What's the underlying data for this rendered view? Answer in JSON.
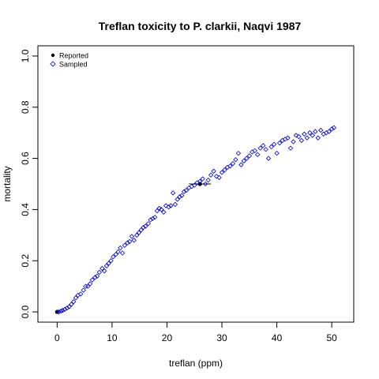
{
  "chart_data": {
    "type": "scatter",
    "title": "Treflan toxicity to P. clarkii, Naqvi 1987",
    "xlabel": "treflan (ppm)",
    "ylabel": "mortality",
    "xlim": [
      -3.5,
      54
    ],
    "ylim": [
      -0.04,
      1.04
    ],
    "x_ticks": [
      0,
      10,
      20,
      30,
      40,
      50
    ],
    "y_ticks": [
      0.0,
      0.2,
      0.4,
      0.6,
      0.8,
      1.0
    ],
    "x_tick_labels": [
      "0",
      "10",
      "20",
      "30",
      "40",
      "50"
    ],
    "y_tick_labels": [
      "0.0",
      "0.2",
      "0.4",
      "0.6",
      "0.8",
      "1.0"
    ],
    "legend": {
      "position": "top-left",
      "entries": [
        {
          "label": "Reported",
          "marker": "filled-circle"
        },
        {
          "label": "Sampled",
          "marker": "open-diamond"
        }
      ]
    },
    "series": [
      {
        "name": "Reported",
        "marker": "filled-circle",
        "color": "#000000",
        "points": [
          [
            0,
            0.0
          ],
          [
            26,
            0.5
          ]
        ],
        "error_bars_x": [
          [
            24,
            28
          ]
        ]
      },
      {
        "name": "Sampled",
        "marker": "open-diamond",
        "color": "#0000cc",
        "points": [
          [
            0.3,
            0.0
          ],
          [
            0.7,
            0.003
          ],
          [
            1.0,
            0.006
          ],
          [
            1.4,
            0.01
          ],
          [
            1.8,
            0.015
          ],
          [
            2.2,
            0.02
          ],
          [
            2.6,
            0.03
          ],
          [
            3.0,
            0.04
          ],
          [
            3.4,
            0.055
          ],
          [
            3.8,
            0.065
          ],
          [
            4.3,
            0.07
          ],
          [
            4.8,
            0.085
          ],
          [
            5.2,
            0.1
          ],
          [
            5.6,
            0.1
          ],
          [
            6.0,
            0.11
          ],
          [
            6.4,
            0.125
          ],
          [
            6.9,
            0.135
          ],
          [
            7.3,
            0.14
          ],
          [
            7.7,
            0.155
          ],
          [
            8.2,
            0.17
          ],
          [
            8.6,
            0.16
          ],
          [
            9.0,
            0.18
          ],
          [
            9.4,
            0.19
          ],
          [
            9.8,
            0.2
          ],
          [
            10.2,
            0.215
          ],
          [
            10.7,
            0.225
          ],
          [
            11.1,
            0.235
          ],
          [
            11.5,
            0.25
          ],
          [
            11.9,
            0.23
          ],
          [
            12.3,
            0.26
          ],
          [
            12.8,
            0.27
          ],
          [
            13.2,
            0.275
          ],
          [
            13.6,
            0.295
          ],
          [
            14.0,
            0.28
          ],
          [
            14.5,
            0.3
          ],
          [
            14.9,
            0.31
          ],
          [
            15.3,
            0.32
          ],
          [
            15.7,
            0.33
          ],
          [
            16.1,
            0.335
          ],
          [
            16.6,
            0.345
          ],
          [
            17.0,
            0.36
          ],
          [
            17.4,
            0.365
          ],
          [
            17.8,
            0.37
          ],
          [
            18.2,
            0.395
          ],
          [
            18.6,
            0.405
          ],
          [
            19.0,
            0.4
          ],
          [
            19.4,
            0.39
          ],
          [
            19.8,
            0.415
          ],
          [
            20.3,
            0.41
          ],
          [
            20.7,
            0.415
          ],
          [
            21.1,
            0.465
          ],
          [
            21.5,
            0.42
          ],
          [
            21.9,
            0.44
          ],
          [
            22.3,
            0.45
          ],
          [
            22.7,
            0.455
          ],
          [
            23.1,
            0.47
          ],
          [
            23.5,
            0.475
          ],
          [
            24.0,
            0.485
          ],
          [
            24.5,
            0.49
          ],
          [
            25.0,
            0.495
          ],
          [
            25.5,
            0.505
          ],
          [
            26.0,
            0.51
          ],
          [
            26.5,
            0.52
          ],
          [
            27.0,
            0.5
          ],
          [
            27.5,
            0.515
          ],
          [
            28.0,
            0.535
          ],
          [
            28.5,
            0.55
          ],
          [
            29.0,
            0.53
          ],
          [
            29.5,
            0.525
          ],
          [
            30.0,
            0.545
          ],
          [
            30.5,
            0.555
          ],
          [
            31.0,
            0.565
          ],
          [
            31.5,
            0.57
          ],
          [
            32.0,
            0.58
          ],
          [
            32.5,
            0.595
          ],
          [
            33.0,
            0.62
          ],
          [
            33.5,
            0.575
          ],
          [
            34.0,
            0.59
          ],
          [
            34.5,
            0.6
          ],
          [
            35.0,
            0.61
          ],
          [
            35.5,
            0.625
          ],
          [
            36.0,
            0.63
          ],
          [
            36.5,
            0.615
          ],
          [
            37.0,
            0.64
          ],
          [
            37.5,
            0.65
          ],
          [
            38.0,
            0.635
          ],
          [
            38.5,
            0.6
          ],
          [
            39.0,
            0.645
          ],
          [
            39.5,
            0.655
          ],
          [
            40.0,
            0.62
          ],
          [
            40.5,
            0.66
          ],
          [
            41.0,
            0.67
          ],
          [
            41.5,
            0.675
          ],
          [
            42.0,
            0.68
          ],
          [
            42.5,
            0.64
          ],
          [
            43.0,
            0.665
          ],
          [
            43.5,
            0.69
          ],
          [
            44.0,
            0.685
          ],
          [
            44.5,
            0.67
          ],
          [
            45.0,
            0.695
          ],
          [
            45.5,
            0.68
          ],
          [
            46.0,
            0.7
          ],
          [
            46.5,
            0.69
          ],
          [
            47.0,
            0.705
          ],
          [
            47.5,
            0.68
          ],
          [
            48.0,
            0.71
          ],
          [
            48.5,
            0.695
          ],
          [
            49.0,
            0.7
          ],
          [
            49.5,
            0.705
          ],
          [
            50.0,
            0.715
          ],
          [
            50.4,
            0.72
          ]
        ]
      }
    ]
  }
}
